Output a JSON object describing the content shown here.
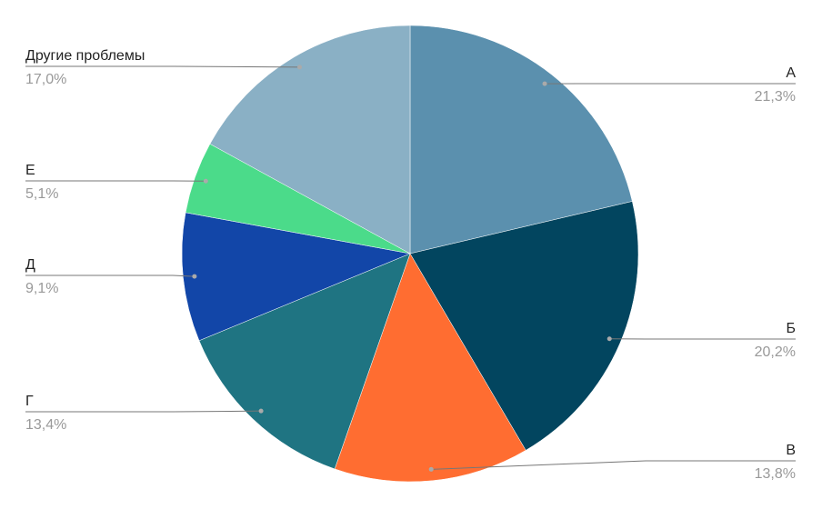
{
  "chart_data": {
    "type": "pie",
    "categories": [
      "А",
      "Б",
      "В",
      "Г",
      "Д",
      "Е",
      "Другие проблемы"
    ],
    "values": [
      21.3,
      20.2,
      13.8,
      13.4,
      9.1,
      5.1,
      17.0
    ],
    "value_labels": [
      "21,3%",
      "20,2%",
      "13,8%",
      "13,4%",
      "9,1%",
      "5,1%",
      "17,0%"
    ],
    "colors": [
      "#5b90ae",
      "#02455f",
      "#ff6d31",
      "#1f7482",
      "#1246a8",
      "#4bdb8a",
      "#8ab0c5"
    ]
  }
}
